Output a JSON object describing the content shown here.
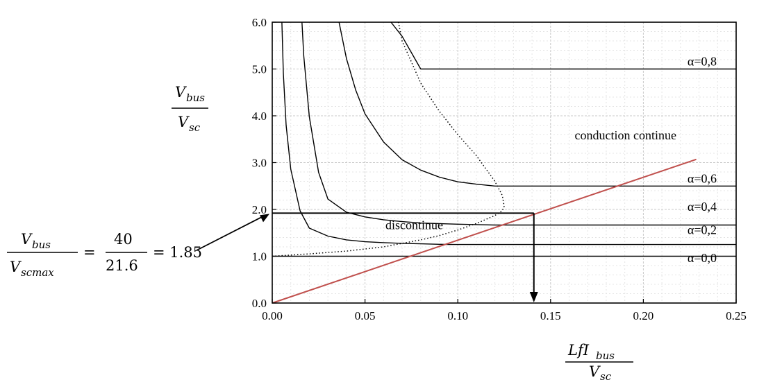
{
  "chart_data": {
    "type": "line",
    "title": "",
    "x_axis": {
      "label_num": "LfI",
      "label_num_sub": "bus",
      "label_den": "V",
      "label_den_sub": "sc",
      "range": [
        0,
        0.25
      ],
      "ticks": [
        0,
        0.05,
        0.1,
        0.15,
        0.2,
        0.25
      ],
      "tick_labels": [
        "0.00",
        "0.05",
        "0.10",
        "0.15",
        "0.20",
        "0.25"
      ]
    },
    "y_axis": {
      "label_num": "V",
      "label_num_sub": "bus",
      "label_den": "V",
      "label_den_sub": "sc",
      "range": [
        0,
        6
      ],
      "ticks": [
        0,
        1,
        2,
        3,
        4,
        5,
        6
      ],
      "tick_labels": [
        "0.0",
        "1.0",
        "2.0",
        "3.0",
        "4.0",
        "5.0",
        "6.0"
      ]
    },
    "grid": true,
    "series": [
      {
        "name": "α=0,0",
        "style": "solid",
        "x": [
          0.0,
          0.25
        ],
        "y": [
          1.0,
          1.0
        ]
      },
      {
        "name": "α=0,2",
        "style": "solid",
        "x": [
          0.0052,
          0.006,
          0.0075,
          0.01,
          0.015,
          0.02,
          0.03,
          0.04,
          0.05,
          0.06,
          0.07,
          0.08,
          0.09,
          0.095,
          0.25
        ],
        "y": [
          6.0,
          4.91,
          3.8,
          2.86,
          1.97,
          1.6,
          1.43,
          1.35,
          1.31,
          1.29,
          1.275,
          1.265,
          1.255,
          1.25,
          1.25
        ]
      },
      {
        "name": "α=0,4",
        "style": "solid",
        "x": [
          0.016,
          0.017,
          0.02,
          0.025,
          0.03,
          0.04,
          0.05,
          0.06,
          0.07,
          0.08,
          0.09,
          0.1,
          0.11,
          0.12,
          0.25
        ],
        "y": [
          6.0,
          5.28,
          3.98,
          2.79,
          2.22,
          1.94,
          1.84,
          1.78,
          1.74,
          1.71,
          1.697,
          1.685,
          1.675,
          1.667,
          1.667
        ]
      },
      {
        "name": "α=0,6",
        "style": "solid",
        "x": [
          0.036,
          0.04,
          0.045,
          0.05,
          0.06,
          0.07,
          0.08,
          0.09,
          0.1,
          0.11,
          0.12,
          0.25
        ],
        "y": [
          6.0,
          5.22,
          4.55,
          4.04,
          3.44,
          3.06,
          2.84,
          2.69,
          2.59,
          2.54,
          2.5,
          2.5
        ]
      },
      {
        "name": "α=0,8",
        "style": "solid",
        "x": [
          0.064,
          0.07,
          0.075,
          0.08,
          0.25
        ],
        "y": [
          6.0,
          5.7,
          5.35,
          5.0,
          5.0
        ]
      },
      {
        "name": "",
        "style": "dotted",
        "x": [
          0.0,
          0.02,
          0.04,
          0.06,
          0.08,
          0.09,
          0.1,
          0.11,
          0.12,
          0.124,
          0.125,
          0.124,
          0.12,
          0.11,
          0.1,
          0.09,
          0.08,
          0.075,
          0.07,
          0.068
        ],
        "y": [
          1.0,
          1.05,
          1.11,
          1.2,
          1.35,
          1.44,
          1.56,
          1.7,
          1.87,
          1.97,
          2.07,
          2.3,
          2.6,
          3.15,
          3.6,
          4.1,
          4.7,
          5.15,
          5.6,
          6.0
        ]
      },
      {
        "name": "",
        "style": "solid",
        "color": "#c0504d",
        "x": [
          0.0,
          0.2285
        ],
        "y": [
          0.0,
          3.07
        ]
      }
    ],
    "annotations": {
      "alpha_labels": [
        {
          "text": "α=0,8",
          "y": 5.0
        },
        {
          "text": "α=0,6",
          "y": 2.5
        },
        {
          "text": "α=0,4",
          "y": 1.9
        },
        {
          "text": "α=0,2",
          "y": 1.4
        },
        {
          "text": "α=0,0",
          "y": 0.8
        }
      ],
      "regions": [
        {
          "text": "conduction continue",
          "x": 0.163,
          "y": 3.5
        },
        {
          "text": "discontinue",
          "x": 0.061,
          "y": 1.58
        }
      ],
      "operating_point": {
        "x": 0.141,
        "y": 1.92
      },
      "equation": {
        "num": "V",
        "num_sub": "bus",
        "den": "V",
        "den_sub": "scmax",
        "frac_num": "40",
        "frac_den": "21.6",
        "result": "= 1.85",
        "eq": "="
      }
    }
  }
}
